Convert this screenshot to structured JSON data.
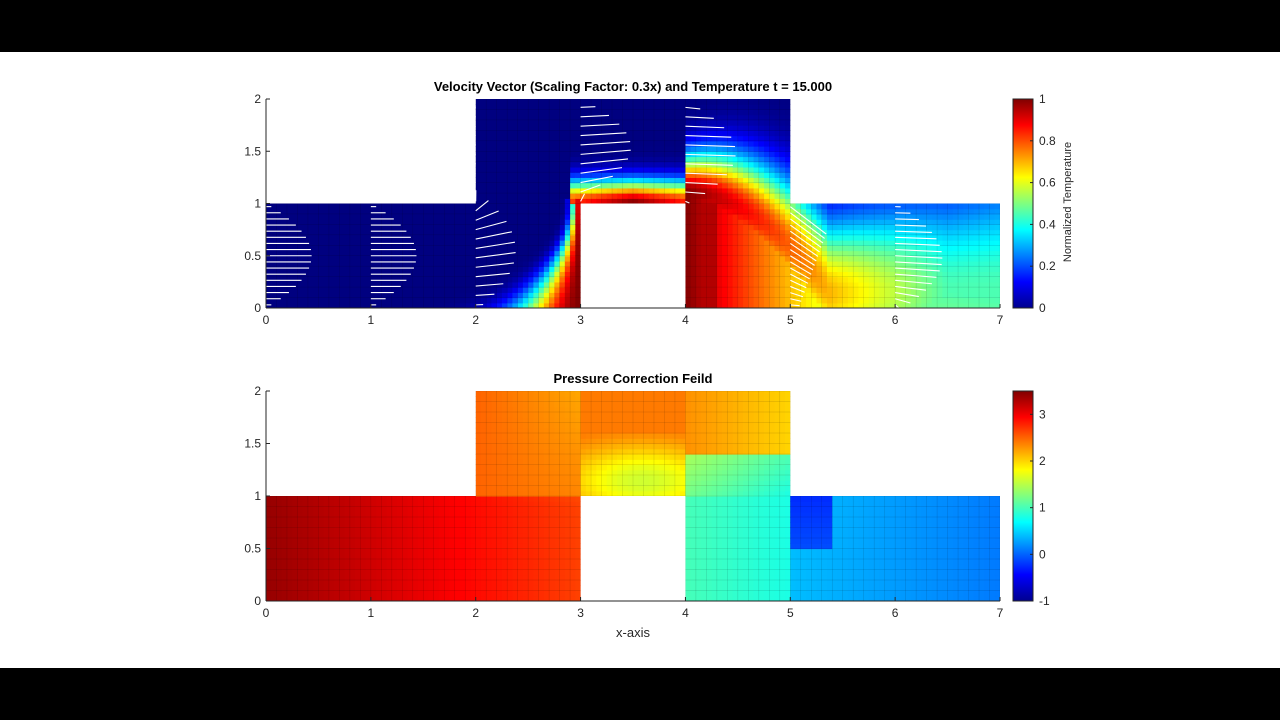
{
  "chart_data": [
    {
      "type": "heatmap",
      "title": "Velocity Vector (Scaling Factor: 0.3x) and Temperature t = 15.000",
      "xlim": [
        0,
        7
      ],
      "ylim": [
        0,
        2
      ],
      "xticks": [
        "0",
        "1",
        "2",
        "3",
        "4",
        "5",
        "6",
        "7"
      ],
      "yticks": [
        "0",
        "0.5",
        "1",
        "1.5",
        "2"
      ],
      "domain": {
        "inlet_channel": {
          "x": [
            0,
            2
          ],
          "y": [
            0,
            1
          ]
        },
        "raised_section": {
          "x": [
            2,
            5
          ],
          "y": [
            0,
            2
          ]
        },
        "outlet_channel": {
          "x": [
            5,
            7
          ],
          "y": [
            0,
            1
          ]
        },
        "obstacle": {
          "x": [
            3,
            4
          ],
          "y": [
            0,
            1
          ]
        }
      },
      "colorbar": {
        "label": "Normalized Temperature",
        "clim": [
          0,
          1
        ],
        "ticks": [
          "0",
          "0.2",
          "0.4",
          "0.6",
          "0.8",
          "1"
        ],
        "colormap": "jet"
      },
      "vector_profiles_x": [
        0,
        1,
        2,
        3,
        4,
        5,
        6
      ],
      "grid": true
    },
    {
      "type": "heatmap",
      "title": "Pressure Correction Feild",
      "xlabel": "x-axis",
      "xlim": [
        0,
        7
      ],
      "ylim": [
        0,
        2
      ],
      "xticks": [
        "0",
        "1",
        "2",
        "3",
        "4",
        "5",
        "6",
        "7"
      ],
      "yticks": [
        "0",
        "0.5",
        "1",
        "1.5",
        "2"
      ],
      "colorbar": {
        "clim": [
          -1,
          3.5
        ],
        "ticks": [
          "-1",
          "0",
          "1",
          "2",
          "3"
        ],
        "colormap": "jet"
      },
      "grid": true
    }
  ]
}
